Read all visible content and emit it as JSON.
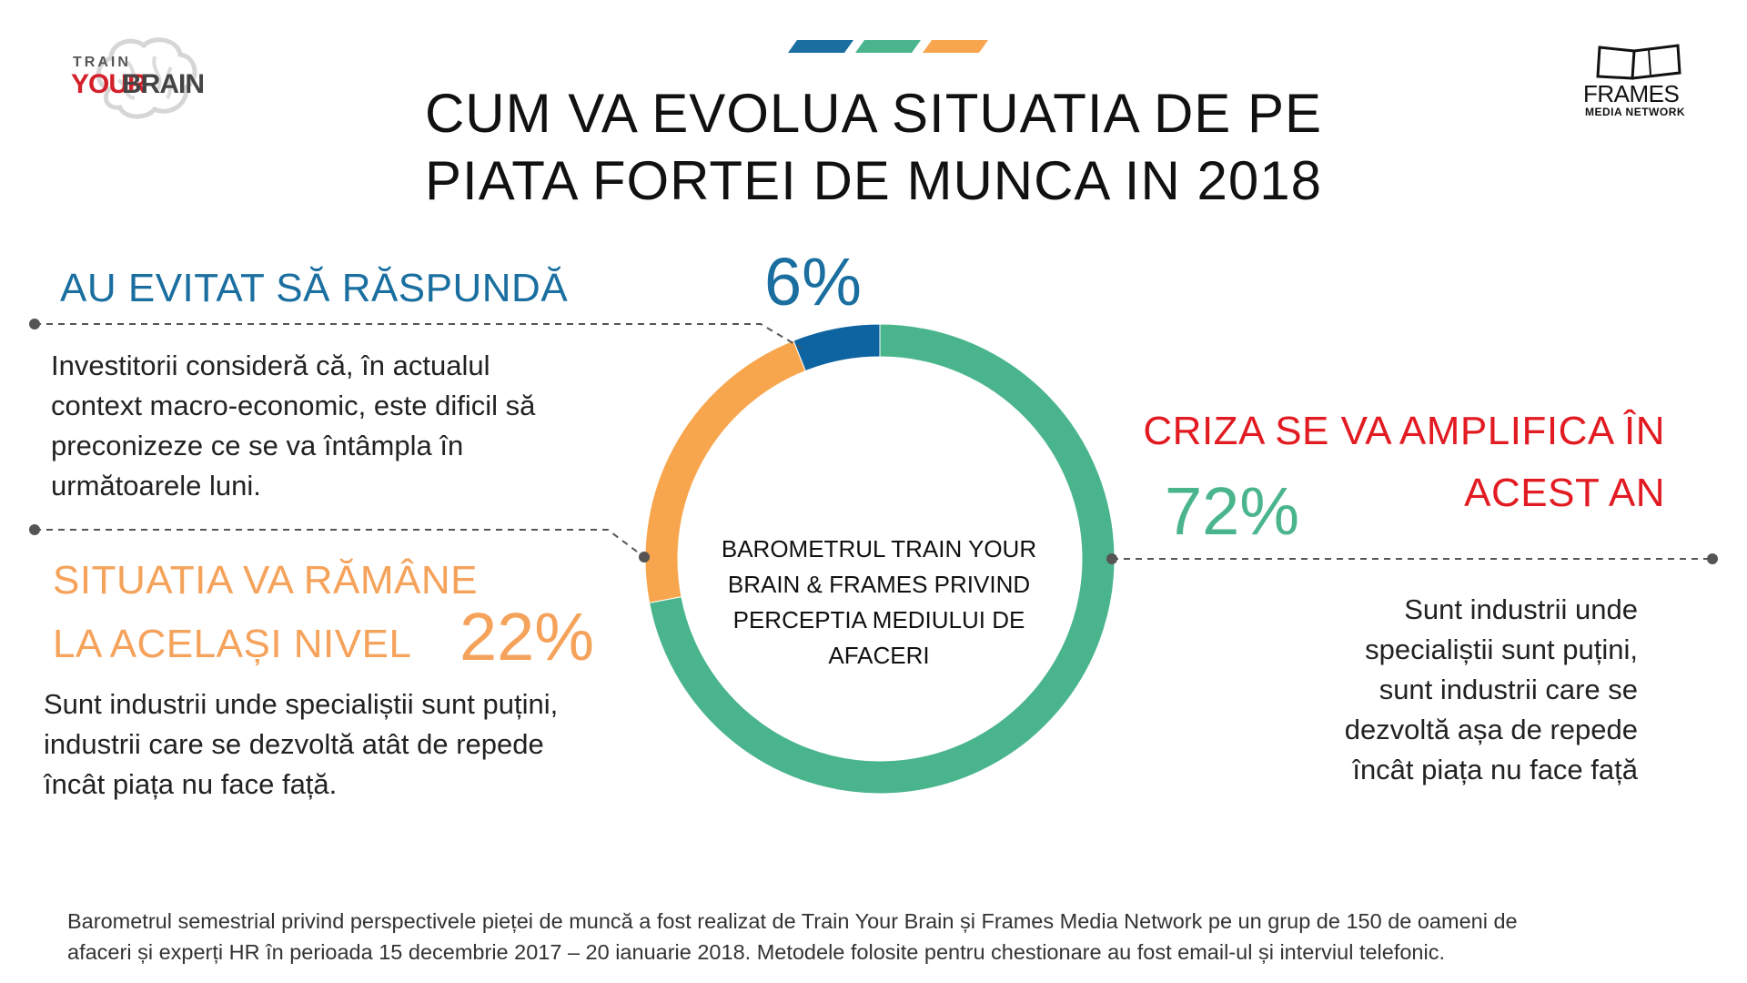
{
  "title_lines": [
    "CUM VA EVOLUA SITUATIA DE PE",
    "PIATA FORTEI DE MUNCA IN 2018"
  ],
  "logos": {
    "left": {
      "train": "TRAIN",
      "your": "YOUR",
      "brain": "BRAIN"
    },
    "right": {
      "frames": "FRAMES",
      "network": "MEDIA NETWORK"
    }
  },
  "colors": {
    "green": "#4ab58d",
    "orange": "#f8a64e",
    "blue": "#0e64a0",
    "red": "#e21b22"
  },
  "chart_data": {
    "type": "pie",
    "donut": true,
    "center_label": "BAROMETRUL TRAIN YOUR BRAIN & FRAMES PRIVIND PERCEPTIA MEDIULUI DE AFACERI",
    "slices": [
      {
        "label": "CRIZA SE VA AMPLIFICA ÎN ACEST AN",
        "value": 72,
        "value_label": "72%",
        "color": "#4ab58d"
      },
      {
        "label": "SITUATIA VA RĂMÂNE LA ACELAȘI NIVEL",
        "value": 22,
        "value_label": "22%",
        "color": "#f8a64e"
      },
      {
        "label": "AU EVITAT SĂ RĂSPUNDĂ",
        "value": 6,
        "value_label": "6%",
        "color": "#0e64a0"
      }
    ]
  },
  "sections": {
    "avoided": {
      "heading": "AU EVITAT SĂ RĂSPUNDĂ",
      "lines": [
        "Investitorii consideră că, în actualul",
        "context macro-economic, este dificil să",
        "preconizeze ce se va întâmpla în",
        "următoarele luni."
      ]
    },
    "same": {
      "heading_lines": [
        "SITUATIA VA RĂMÂNE",
        "LA ACELAȘI NIVEL"
      ],
      "lines": [
        "Sunt industrii unde specialiștii sunt puțini,",
        "industrii care se dezvoltă atât de repede",
        "încât piața nu face față."
      ]
    },
    "crisis": {
      "heading_lines": [
        "CRIZA SE VA AMPLIFICA ÎN",
        "ACEST AN"
      ],
      "lines": [
        "Sunt industrii unde",
        "specialiștii sunt puțini,",
        "sunt industrii care se",
        "dezvoltă așa de repede",
        "încât piața nu face față"
      ]
    }
  },
  "footer": {
    "lines": [
      "Barometrul semestrial privind perspectivele pieței de muncă a fost realizat de Train Your Brain și Frames Media Network pe un grup de 150 de oameni de",
      "afaceri și experți HR în perioada 15 decembrie 2017 – 20 ianuarie 2018. Metodele folosite pentru chestionare au fost email-ul și interviul telefonic."
    ]
  }
}
